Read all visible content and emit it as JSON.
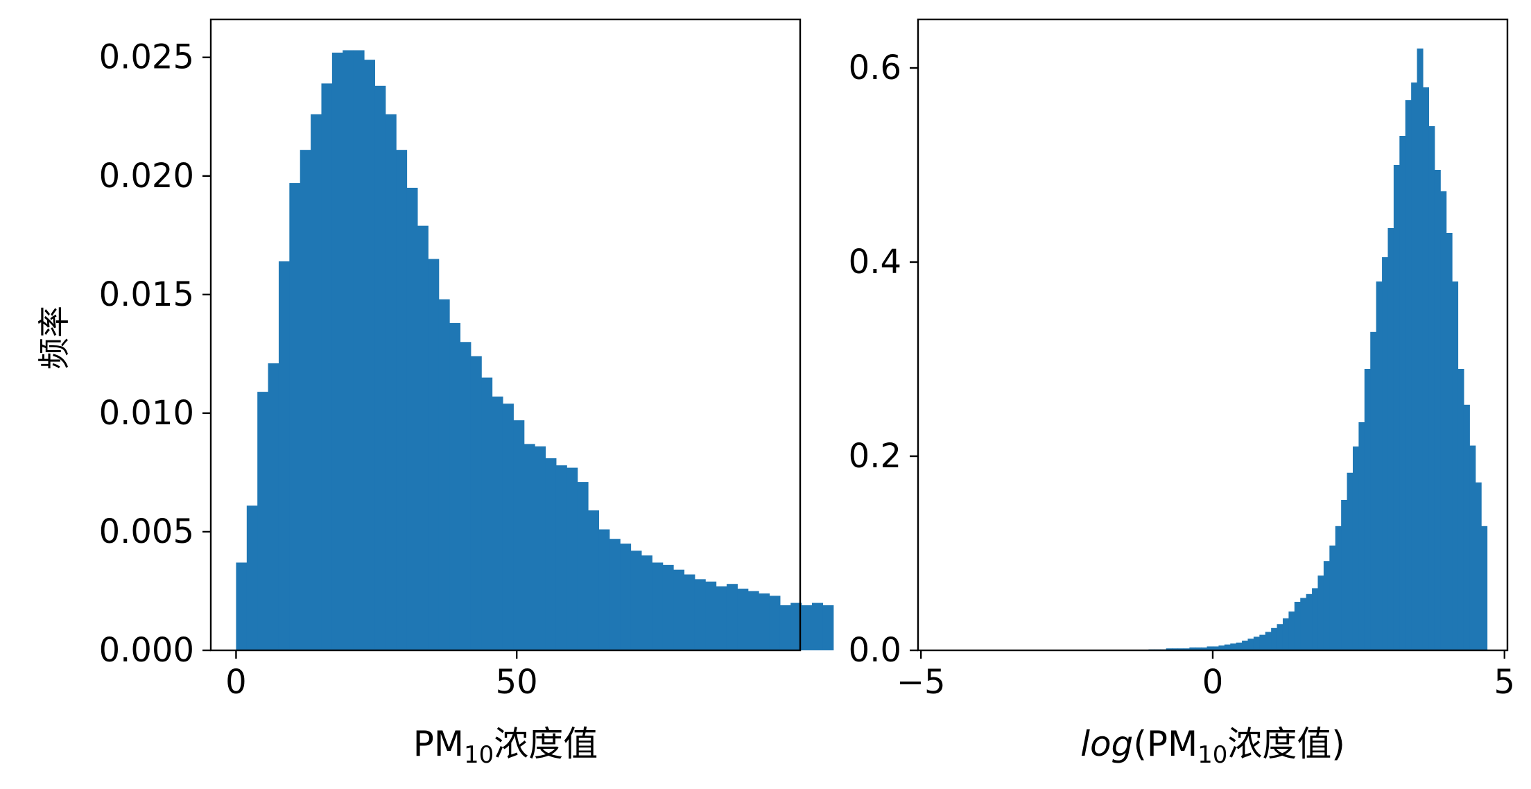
{
  "chart_data": [
    {
      "type": "bar",
      "subtype": "histogram",
      "ylabel": "频率",
      "xlabel": {
        "base": "PM",
        "sub": "10",
        "suffix": "浓度值"
      },
      "xlim": [
        -4.5,
        100.5
      ],
      "ylim": [
        0,
        0.0266
      ],
      "xticks": [
        0,
        50
      ],
      "xtick_labels": [
        "0",
        "50"
      ],
      "yticks": [
        0,
        0.005,
        0.01,
        0.015,
        0.02,
        0.025
      ],
      "ytick_labels": [
        "0.000",
        "0.005",
        "0.010",
        "0.015",
        "0.020",
        "0.025"
      ],
      "bar_color": "#1f77b4",
      "bin_start": 0,
      "bin_width": 1.9,
      "values": [
        0.0037,
        0.0061,
        0.0109,
        0.0121,
        0.0164,
        0.0197,
        0.0211,
        0.0226,
        0.0239,
        0.0252,
        0.0253,
        0.0253,
        0.0249,
        0.0238,
        0.0226,
        0.0211,
        0.0195,
        0.0179,
        0.0165,
        0.0148,
        0.0138,
        0.013,
        0.0124,
        0.0115,
        0.0107,
        0.0104,
        0.0097,
        0.0087,
        0.0086,
        0.0081,
        0.0078,
        0.0077,
        0.0071,
        0.0059,
        0.0051,
        0.0047,
        0.0045,
        0.0042,
        0.004,
        0.0037,
        0.0036,
        0.0034,
        0.0032,
        0.003,
        0.0029,
        0.0027,
        0.0028,
        0.0026,
        0.0025,
        0.0024,
        0.0023,
        0.0019,
        0.002,
        0.0019,
        0.002,
        0.0019
      ]
    },
    {
      "type": "bar",
      "subtype": "histogram",
      "xlabel": {
        "log": "log",
        "open": "(",
        "base": "PM",
        "sub": "10",
        "suffix": "浓度值",
        "close": ")"
      },
      "xlim": [
        -5.05,
        5.05
      ],
      "ylim": [
        0,
        0.65
      ],
      "xticks": [
        -5,
        0,
        5
      ],
      "xtick_labels": [
        "−5",
        "0",
        "5"
      ],
      "yticks": [
        0,
        0.2,
        0.4,
        0.6
      ],
      "ytick_labels": [
        "0.0",
        "0.2",
        "0.4",
        "0.6"
      ],
      "bar_color": "#1f77b4",
      "bin_start": -1.1,
      "bin_width": 0.1,
      "values": [
        0.001,
        0.001,
        0.001,
        0.002,
        0.002,
        0.002,
        0.002,
        0.003,
        0.003,
        0.003,
        0.004,
        0.004,
        0.005,
        0.006,
        0.007,
        0.008,
        0.01,
        0.012,
        0.014,
        0.016,
        0.019,
        0.023,
        0.027,
        0.033,
        0.04,
        0.05,
        0.054,
        0.058,
        0.064,
        0.077,
        0.092,
        0.108,
        0.128,
        0.155,
        0.183,
        0.21,
        0.235,
        0.29,
        0.328,
        0.38,
        0.405,
        0.435,
        0.5,
        0.53,
        0.567,
        0.585,
        0.62,
        0.58,
        0.54,
        0.495,
        0.473,
        0.43,
        0.38,
        0.29,
        0.253,
        0.211,
        0.173,
        0.128
      ]
    }
  ]
}
